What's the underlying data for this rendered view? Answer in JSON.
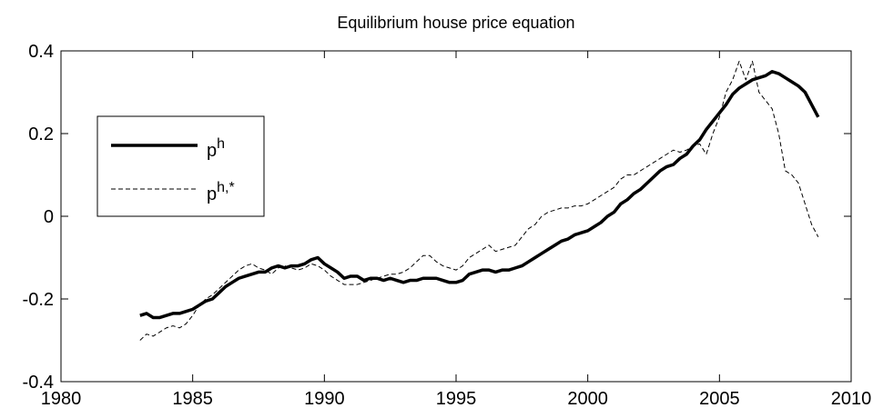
{
  "chart_data": {
    "type": "line",
    "title": "Equilibrium house price equation",
    "x": [
      1983,
      1983.25,
      1983.5,
      1983.75,
      1984,
      1984.25,
      1984.5,
      1984.75,
      1985,
      1985.25,
      1985.5,
      1985.75,
      1986,
      1986.25,
      1986.5,
      1986.75,
      1987,
      1987.25,
      1987.5,
      1987.75,
      1988,
      1988.25,
      1988.5,
      1988.75,
      1989,
      1989.25,
      1989.5,
      1989.75,
      1990,
      1990.25,
      1990.5,
      1990.75,
      1991,
      1991.25,
      1991.5,
      1991.75,
      1992,
      1992.25,
      1992.5,
      1992.75,
      1993,
      1993.25,
      1993.5,
      1993.75,
      1994,
      1994.25,
      1994.5,
      1994.75,
      1995,
      1995.25,
      1995.5,
      1995.75,
      1996,
      1996.25,
      1996.5,
      1996.75,
      1997,
      1997.25,
      1997.5,
      1997.75,
      1998,
      1998.25,
      1998.5,
      1998.75,
      1999,
      1999.25,
      1999.5,
      1999.75,
      2000,
      2000.25,
      2000.5,
      2000.75,
      2001,
      2001.25,
      2001.5,
      2001.75,
      2002,
      2002.25,
      2002.5,
      2002.75,
      2003,
      2003.25,
      2003.5,
      2003.75,
      2004,
      2004.25,
      2004.5,
      2004.75,
      2005,
      2005.25,
      2005.5,
      2005.75,
      2006,
      2006.25,
      2006.5,
      2006.75,
      2007,
      2007.25,
      2007.5,
      2007.75,
      2008,
      2008.25,
      2008.5,
      2008.75
    ],
    "series": [
      {
        "name": "p^h",
        "color": "#000000",
        "style": "solid",
        "values": [
          -0.24,
          -0.235,
          -0.245,
          -0.245,
          -0.24,
          -0.235,
          -0.235,
          -0.23,
          -0.225,
          -0.215,
          -0.205,
          -0.2,
          -0.185,
          -0.17,
          -0.16,
          -0.15,
          -0.145,
          -0.14,
          -0.135,
          -0.135,
          -0.125,
          -0.12,
          -0.125,
          -0.12,
          -0.12,
          -0.115,
          -0.105,
          -0.1,
          -0.115,
          -0.125,
          -0.135,
          -0.15,
          -0.145,
          -0.145,
          -0.155,
          -0.15,
          -0.15,
          -0.155,
          -0.15,
          -0.155,
          -0.16,
          -0.155,
          -0.155,
          -0.15,
          -0.15,
          -0.15,
          -0.155,
          -0.16,
          -0.16,
          -0.155,
          -0.14,
          -0.135,
          -0.13,
          -0.13,
          -0.135,
          -0.13,
          -0.13,
          -0.125,
          -0.12,
          -0.11,
          -0.1,
          -0.09,
          -0.08,
          -0.07,
          -0.06,
          -0.055,
          -0.045,
          -0.04,
          -0.035,
          -0.025,
          -0.015,
          0,
          0.01,
          0.03,
          0.04,
          0.055,
          0.065,
          0.08,
          0.095,
          0.11,
          0.12,
          0.125,
          0.14,
          0.15,
          0.17,
          0.185,
          0.21,
          0.23,
          0.25,
          0.27,
          0.295,
          0.31,
          0.32,
          0.33,
          0.335,
          0.34,
          0.35,
          0.345,
          0.335,
          0.325,
          0.315,
          0.3,
          0.27,
          0.24
        ]
      },
      {
        "name": "p^h,*",
        "color": "#000000",
        "style": "dashed",
        "values": [
          -0.3,
          -0.285,
          -0.29,
          -0.28,
          -0.27,
          -0.265,
          -0.27,
          -0.26,
          -0.24,
          -0.215,
          -0.2,
          -0.19,
          -0.175,
          -0.16,
          -0.145,
          -0.13,
          -0.12,
          -0.115,
          -0.125,
          -0.13,
          -0.14,
          -0.125,
          -0.12,
          -0.125,
          -0.13,
          -0.125,
          -0.115,
          -0.12,
          -0.13,
          -0.145,
          -0.155,
          -0.165,
          -0.165,
          -0.165,
          -0.16,
          -0.155,
          -0.15,
          -0.145,
          -0.14,
          -0.14,
          -0.135,
          -0.125,
          -0.11,
          -0.095,
          -0.095,
          -0.11,
          -0.12,
          -0.125,
          -0.13,
          -0.12,
          -0.1,
          -0.09,
          -0.08,
          -0.07,
          -0.085,
          -0.08,
          -0.075,
          -0.07,
          -0.05,
          -0.03,
          -0.02,
          0,
          0.01,
          0.015,
          0.02,
          0.02,
          0.025,
          0.025,
          0.03,
          0.04,
          0.05,
          0.06,
          0.07,
          0.09,
          0.1,
          0.1,
          0.11,
          0.12,
          0.13,
          0.14,
          0.15,
          0.16,
          0.155,
          0.16,
          0.17,
          0.175,
          0.15,
          0.2,
          0.24,
          0.3,
          0.33,
          0.375,
          0.33,
          0.375,
          0.3,
          0.28,
          0.26,
          0.2,
          0.11,
          0.1,
          0.08,
          0.03,
          -0.02,
          -0.05
        ]
      }
    ],
    "xlim": [
      1980,
      2010
    ],
    "xticks": [
      1980,
      1985,
      1990,
      1995,
      2000,
      2005,
      2010
    ],
    "ylim": [
      -0.4,
      0.4
    ],
    "yticks": [
      -0.4,
      -0.2,
      0,
      0.2,
      0.4
    ],
    "grid": false,
    "legend": "upper left"
  }
}
